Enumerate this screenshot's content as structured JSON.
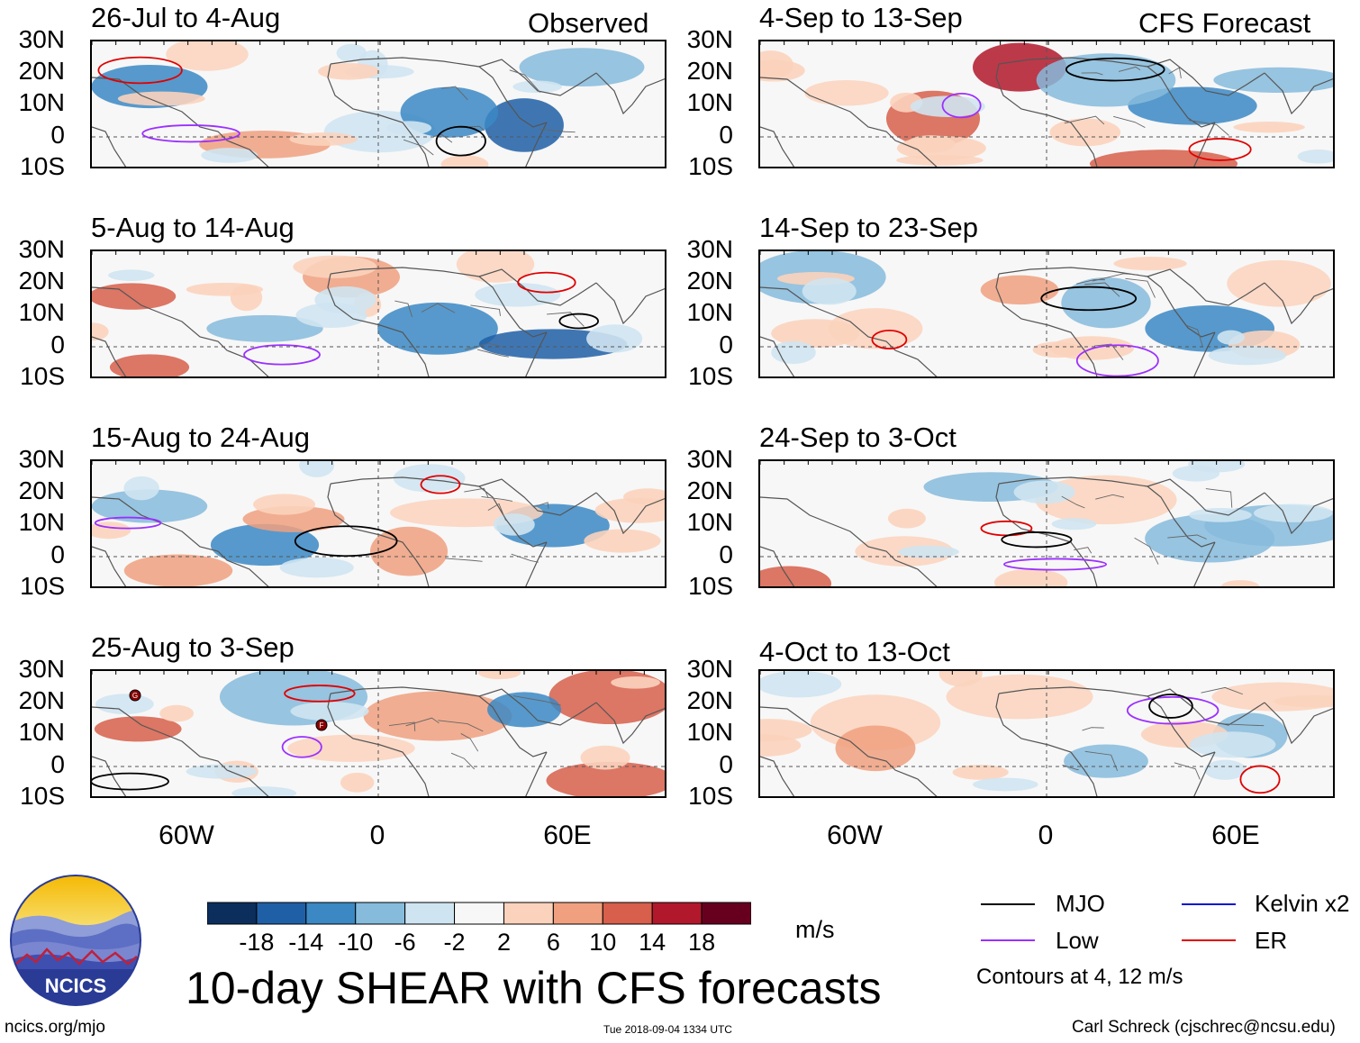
{
  "columns": {
    "left_tag": "Observed",
    "right_tag": "CFS Forecast"
  },
  "panels": [
    {
      "title": "26-Jul to 4-Aug"
    },
    {
      "title": "5-Aug to 14-Aug"
    },
    {
      "title": "15-Aug to 24-Aug"
    },
    {
      "title": "25-Aug to 3-Sep"
    },
    {
      "title": "4-Sep to 13-Sep"
    },
    {
      "title": "14-Sep to 23-Sep"
    },
    {
      "title": "24-Sep to 3-Oct"
    },
    {
      "title": "4-Oct to 13-Oct"
    }
  ],
  "axes": {
    "lat_labels": [
      "30N",
      "20N",
      "10N",
      "0",
      "10S"
    ],
    "lon_labels": [
      "60W",
      "0",
      "60E"
    ]
  },
  "colorbar": {
    "labels": [
      "-18",
      "-14",
      "-10",
      "-6",
      "-2",
      "2",
      "6",
      "10",
      "14",
      "18"
    ],
    "colors": [
      "#0b2e5c",
      "#1f5fa6",
      "#3b88c4",
      "#86bbdc",
      "#cfe4f1",
      "#f7f7f7",
      "#fbd3bd",
      "#f0a07f",
      "#d75f4b",
      "#b2182b",
      "#67001f"
    ],
    "units": "m/s"
  },
  "legend": {
    "items": [
      {
        "label": "MJO",
        "color": "#000000"
      },
      {
        "label": "Kelvin x2",
        "color": "#1010d0"
      },
      {
        "label": "Low",
        "color": "#9b30ff"
      },
      {
        "label": "ER",
        "color": "#e00000"
      }
    ],
    "note": "Contours at 4, 12 m/s"
  },
  "title": "10-day SHEAR with CFS forecasts",
  "logo_text": "NCICS",
  "footer": {
    "left": "ncics.org/mjo",
    "center": "Tue 2018-09-04 1334 UTC",
    "right": "Carl Schreck (cjschrec@ncsu.edu)"
  },
  "storm_markers": [
    "G",
    "F"
  ]
}
